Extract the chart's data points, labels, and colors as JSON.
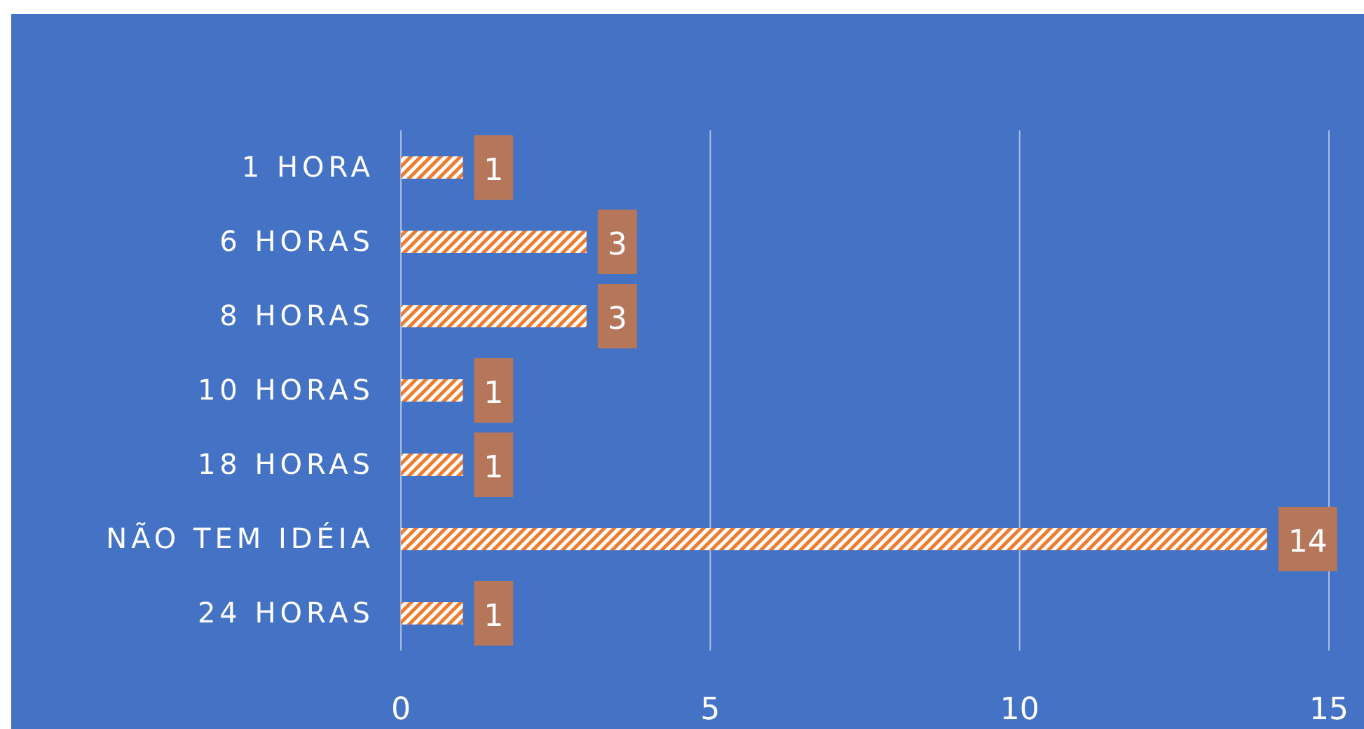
{
  "chart_data": {
    "type": "bar",
    "orientation": "horizontal",
    "categories": [
      "1 HORA",
      "6 HORAS",
      "8 HORAS",
      "10 HORAS",
      "18 HORAS",
      "NÃO TEM IDÉIA",
      "24 HORAS"
    ],
    "values": [
      1,
      3,
      3,
      1,
      1,
      14,
      1
    ],
    "color": "#ed7d31",
    "xlim": [
      0,
      15
    ],
    "xticks": [
      0,
      5,
      10,
      15
    ],
    "grid": "x",
    "data_labels": true
  }
}
